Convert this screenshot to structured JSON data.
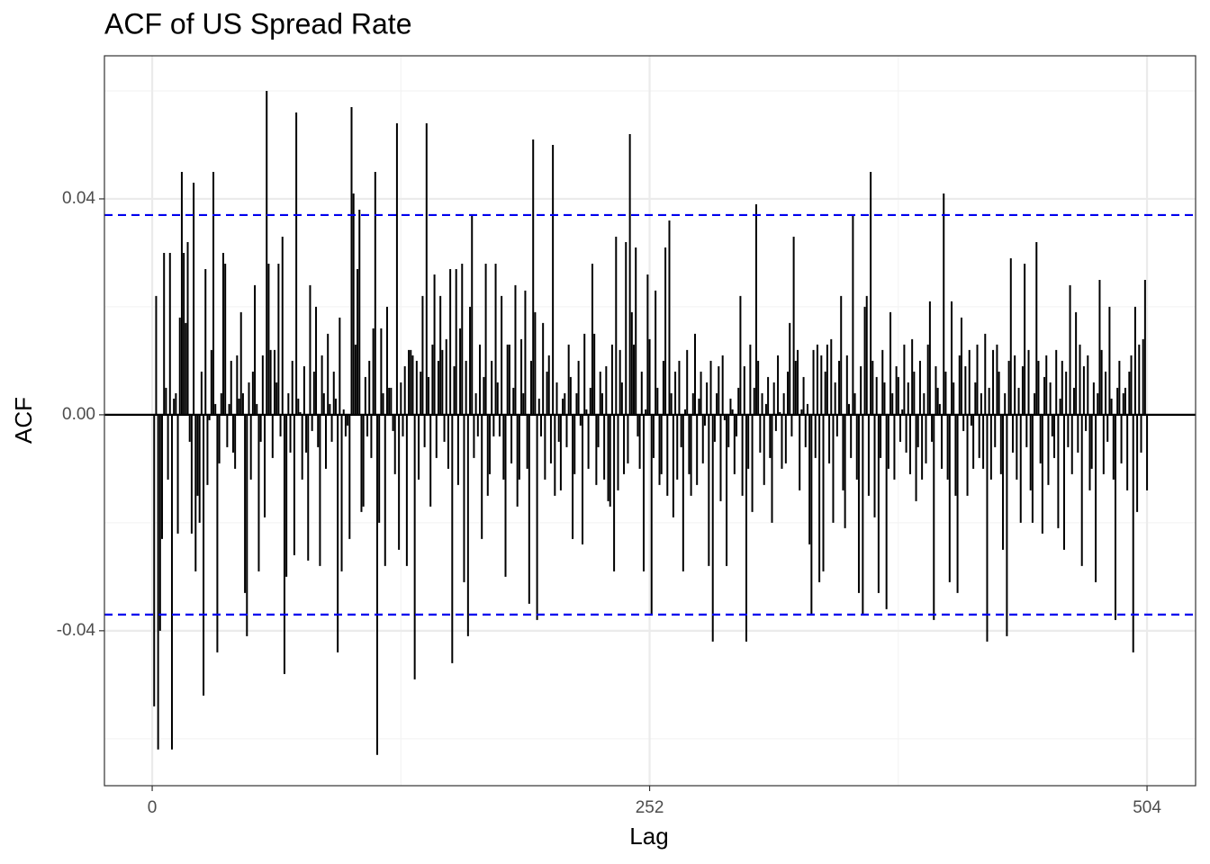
{
  "chart_data": {
    "type": "acf",
    "title": "ACF of US Spread Rate",
    "x_label": "Lag",
    "y_label": "ACF",
    "color": "#000000",
    "bound_color": "#0000ee",
    "confidence_bounds": [
      0.037,
      -0.037
    ],
    "xlim": [
      -24.2,
      528.6
    ],
    "ylim": [
      -0.0687,
      0.0665
    ],
    "xticks": [
      0,
      252,
      504
    ],
    "x_minor_ticks": [
      126,
      378
    ],
    "yticks": [
      -0.04,
      {
        "value": 0,
        "label": "0.00"
      },
      0.04
    ],
    "y_minor_ticks": [
      -0.06,
      -0.02,
      0.02,
      0.06
    ],
    "grid": true,
    "x": [
      1,
      2,
      3,
      4,
      5,
      6,
      7,
      8,
      9,
      10,
      11,
      12,
      13,
      14,
      15,
      16,
      17,
      18,
      19,
      20,
      21,
      22,
      23,
      24,
      25,
      26,
      27,
      28,
      29,
      30,
      31,
      32,
      33,
      34,
      35,
      36,
      37,
      38,
      39,
      40,
      41,
      42,
      43,
      44,
      45,
      46,
      47,
      48,
      49,
      50,
      51,
      52,
      53,
      54,
      55,
      56,
      57,
      58,
      59,
      60,
      61,
      62,
      63,
      64,
      65,
      66,
      67,
      68,
      69,
      70,
      71,
      72,
      73,
      74,
      75,
      76,
      77,
      78,
      79,
      80,
      81,
      82,
      83,
      84,
      85,
      86,
      87,
      88,
      89,
      90,
      91,
      92,
      93,
      94,
      95,
      96,
      97,
      98,
      99,
      100,
      101,
      102,
      103,
      104,
      105,
      106,
      107,
      108,
      109,
      110,
      111,
      112,
      113,
      114,
      115,
      116,
      117,
      118,
      119,
      120,
      121,
      122,
      123,
      124,
      125,
      126,
      127,
      128,
      129,
      130,
      131,
      132,
      133,
      134,
      135,
      136,
      137,
      138,
      139,
      140,
      141,
      142,
      143,
      144,
      145,
      146,
      147,
      148,
      149,
      150,
      151,
      152,
      153,
      154,
      155,
      156,
      157,
      158,
      159,
      160,
      161,
      162,
      163,
      164,
      165,
      166,
      167,
      168,
      169,
      170,
      171,
      172,
      173,
      174,
      175,
      176,
      177,
      178,
      179,
      180,
      181,
      182,
      183,
      184,
      185,
      186,
      187,
      188,
      189,
      190,
      191,
      192,
      193,
      194,
      195,
      196,
      197,
      198,
      199,
      200,
      201,
      202,
      203,
      204,
      205,
      206,
      207,
      208,
      209,
      210,
      211,
      212,
      213,
      214,
      215,
      216,
      217,
      218,
      219,
      220,
      221,
      222,
      223,
      224,
      225,
      226,
      227,
      228,
      229,
      230,
      231,
      232,
      233,
      234,
      235,
      236,
      237,
      238,
      239,
      240,
      241,
      242,
      243,
      244,
      245,
      246,
      247,
      248,
      249,
      250,
      251,
      252,
      253,
      254,
      255,
      256,
      257,
      258,
      259,
      260,
      261,
      262,
      263,
      264,
      265,
      266,
      267,
      268,
      269,
      270,
      271,
      272,
      273,
      274,
      275,
      276,
      277,
      278,
      279,
      280,
      281,
      282,
      283,
      284,
      285,
      286,
      287,
      288,
      289,
      290,
      291,
      292,
      293,
      294,
      295,
      296,
      297,
      298,
      299,
      300,
      301,
      302,
      303,
      304,
      305,
      306,
      307,
      308,
      309,
      310,
      311,
      312,
      313,
      314,
      315,
      316,
      317,
      318,
      319,
      320,
      321,
      322,
      323,
      324,
      325,
      326,
      327,
      328,
      329,
      330,
      331,
      332,
      333,
      334,
      335,
      336,
      337,
      338,
      339,
      340,
      341,
      342,
      343,
      344,
      345,
      346,
      347,
      348,
      349,
      350,
      351,
      352,
      353,
      354,
      355,
      356,
      357,
      358,
      359,
      360,
      361,
      362,
      363,
      364,
      365,
      366,
      367,
      368,
      369,
      370,
      371,
      372,
      373,
      374,
      375,
      376,
      377,
      378,
      379,
      380,
      381,
      382,
      383,
      384,
      385,
      386,
      387,
      388,
      389,
      390,
      391,
      392,
      393,
      394,
      395,
      396,
      397,
      398,
      399,
      400,
      401,
      402,
      403,
      404,
      405,
      406,
      407,
      408,
      409,
      410,
      411,
      412,
      413,
      414,
      415,
      416,
      417,
      418,
      419,
      420,
      421,
      422,
      423,
      424,
      425,
      426,
      427,
      428,
      429,
      430,
      431,
      432,
      433,
      434,
      435,
      436,
      437,
      438,
      439,
      440,
      441,
      442,
      443,
      444,
      445,
      446,
      447,
      448,
      449,
      450,
      451,
      452,
      453,
      454,
      455,
      456,
      457,
      458,
      459,
      460,
      461,
      462,
      463,
      464,
      465,
      466,
      467,
      468,
      469,
      470,
      471,
      472,
      473,
      474,
      475,
      476,
      477,
      478,
      479,
      480,
      481,
      482,
      483,
      484,
      485,
      486,
      487,
      488,
      489,
      490,
      491,
      492,
      493,
      494,
      495,
      496,
      497,
      498,
      499,
      500,
      501,
      502,
      503,
      504
    ],
    "values": [
      -0.054,
      0.022,
      -0.062,
      -0.04,
      -0.023,
      0.03,
      0.005,
      -0.012,
      0.03,
      -0.062,
      0.003,
      0.004,
      -0.022,
      0.018,
      0.045,
      0.03,
      0.017,
      0.032,
      -0.005,
      -0.022,
      0.043,
      -0.029,
      -0.015,
      -0.02,
      0.008,
      -0.052,
      0.027,
      -0.013,
      -0.001,
      0.012,
      0.045,
      0.002,
      -0.044,
      -0.009,
      0.004,
      0.03,
      0.028,
      -0.006,
      0.002,
      0.01,
      -0.007,
      -0.01,
      0.011,
      0.003,
      0.019,
      0.004,
      -0.033,
      -0.041,
      0.006,
      -0.012,
      0.008,
      0.024,
      0.002,
      -0.029,
      -0.005,
      0.011,
      -0.019,
      0.06,
      0.028,
      0.012,
      -0.008,
      0.012,
      0.006,
      0.028,
      -0.004,
      0.033,
      -0.048,
      -0.03,
      0.004,
      -0.007,
      0.01,
      -0.026,
      0.056,
      0.003,
      0.0005,
      -0.012,
      0.009,
      -0.007,
      -0.027,
      0.024,
      -0.003,
      0.008,
      0.02,
      -0.006,
      -0.028,
      0.011,
      0.004,
      -0.01,
      0.015,
      0.002,
      -0.005,
      0.008,
      0.003,
      -0.044,
      0.018,
      -0.029,
      0.001,
      -0.004,
      -0.002,
      -0.023,
      0.057,
      0.041,
      0.013,
      0.027,
      0.038,
      -0.018,
      -0.017,
      0.007,
      -0.004,
      0.01,
      -0.008,
      0.016,
      0.045,
      -0.063,
      -0.02,
      0.016,
      0.004,
      -0.028,
      0.02,
      0.005,
      0.005,
      -0.003,
      -0.011,
      0.054,
      -0.025,
      0.006,
      -0.004,
      0.009,
      -0.028,
      0.012,
      0.012,
      0.011,
      -0.049,
      0.01,
      -0.012,
      0.008,
      0.022,
      -0.006,
      0.054,
      0.007,
      -0.017,
      0.013,
      0.026,
      -0.008,
      0.01,
      0.022,
      0.012,
      -0.005,
      0.014,
      -0.01,
      0.027,
      -0.046,
      0.009,
      0.027,
      -0.013,
      0.016,
      0.028,
      -0.031,
      0.01,
      -0.041,
      0.02,
      0.037,
      -0.008,
      0.004,
      -0.004,
      0.013,
      -0.023,
      0.007,
      0.028,
      -0.015,
      -0.011,
      0.01,
      -0.004,
      0.028,
      0.006,
      -0.004,
      0.022,
      -0.012,
      -0.03,
      0.013,
      0.013,
      -0.009,
      0.005,
      0.024,
      -0.017,
      -0.012,
      0.014,
      0.004,
      0.023,
      -0.01,
      -0.035,
      0.01,
      0.051,
      0.019,
      -0.038,
      0.003,
      -0.004,
      0.017,
      -0.012,
      0.008,
      0.011,
      -0.009,
      0.05,
      -0.015,
      0.006,
      -0.005,
      -0.014,
      0.003,
      0.004,
      -0.006,
      0.013,
      0.007,
      -0.023,
      -0.011,
      0.004,
      0.01,
      -0.002,
      -0.024,
      0.015,
      0.001,
      -0.01,
      0.005,
      0.028,
      0.015,
      -0.013,
      -0.006,
      0.008,
      0.004,
      -0.012,
      0.009,
      -0.016,
      -0.017,
      0.013,
      -0.029,
      0.033,
      -0.014,
      0.012,
      0.006,
      -0.011,
      0.032,
      -0.009,
      0.052,
      0.019,
      0.013,
      0.031,
      -0.004,
      -0.01,
      0.008,
      -0.029,
      0.001,
      0.026,
      0.014,
      -0.037,
      -0.008,
      0.023,
      0.005,
      -0.013,
      -0.011,
      0.01,
      0.031,
      -0.015,
      0.036,
      0.004,
      -0.019,
      0.008,
      -0.012,
      0.01,
      -0.006,
      -0.029,
      0.001,
      0.012,
      -0.011,
      -0.015,
      0.004,
      0.015,
      -0.013,
      0.003,
      0.008,
      -0.009,
      -0.002,
      0.006,
      -0.028,
      0.01,
      -0.042,
      -0.005,
      0.004,
      0.009,
      -0.016,
      0.011,
      -0.001,
      -0.028,
      -0.006,
      0.003,
      0.001,
      -0.011,
      -0.004,
      0.005,
      0.022,
      -0.015,
      0.009,
      -0.042,
      -0.01,
      0.013,
      -0.018,
      0.005,
      0.039,
      0.01,
      -0.007,
      0.004,
      -0.013,
      0.002,
      0.007,
      -0.008,
      -0.02,
      0.006,
      -0.003,
      0.011,
      0.0005,
      -0.01,
      0.004,
      -0.009,
      0.008,
      0.017,
      -0.004,
      0.033,
      0.01,
      0.012,
      -0.014,
      0.001,
      0.007,
      -0.006,
      0.002,
      -0.024,
      -0.037,
      0.012,
      -0.008,
      0.013,
      -0.031,
      0.011,
      -0.029,
      0.008,
      0.013,
      -0.009,
      0.014,
      -0.02,
      0.006,
      -0.004,
      0.01,
      0.022,
      -0.014,
      -0.021,
      0.011,
      0.002,
      -0.008,
      0.037,
      0.004,
      -0.012,
      -0.033,
      0.009,
      -0.037,
      0.02,
      0.022,
      -0.015,
      0.045,
      0.01,
      -0.019,
      0.007,
      -0.033,
      -0.008,
      0.012,
      0.006,
      -0.036,
      -0.01,
      0.019,
      0.004,
      -0.012,
      0.009,
      0.007,
      -0.005,
      0.001,
      0.013,
      -0.007,
      0.006,
      -0.011,
      0.014,
      0.008,
      -0.016,
      -0.006,
      0.01,
      -0.012,
      0.004,
      -0.009,
      0.013,
      0.021,
      -0.005,
      -0.038,
      0.009,
      0.005,
      0.002,
      -0.01,
      0.041,
      0.008,
      -0.012,
      -0.031,
      0.021,
      0.006,
      -0.015,
      -0.033,
      0.011,
      0.018,
      -0.003,
      0.009,
      -0.015,
      0.012,
      -0.002,
      -0.01,
      0.006,
      0.013,
      -0.008,
      0.004,
      -0.01,
      0.015,
      -0.042,
      0.005,
      -0.012,
      0.012,
      -0.006,
      0.013,
      0.008,
      -0.011,
      -0.025,
      0.004,
      -0.041,
      0.01,
      0.029,
      -0.007,
      0.011,
      -0.012,
      0.005,
      -0.02,
      0.009,
      0.028,
      -0.006,
      0.012,
      -0.014,
      -0.02,
      0.004,
      0.032,
      0.01,
      -0.009,
      -0.022,
      0.007,
      0.011,
      -0.013,
      0.006,
      -0.004,
      -0.008,
      0.012,
      -0.021,
      0.003,
      0.01,
      -0.025,
      0.008,
      -0.006,
      0.024,
      -0.011,
      0.005,
      0.019,
      -0.007,
      0.013,
      -0.028,
      0.009,
      -0.003,
      0.011,
      -0.014,
      -0.01,
      0.006,
      -0.031,
      0.004,
      0.025,
      0.012,
      -0.011,
      0.008,
      -0.005,
      0.02,
      0.003,
      -0.012,
      -0.038,
      0.005,
      0.01,
      -0.009,
      0.004,
      0.005,
      -0.014,
      0.008,
      0.011,
      -0.044,
      0.02,
      -0.018,
      0.013,
      -0.007,
      0.014,
      0.025,
      -0.014
    ]
  }
}
